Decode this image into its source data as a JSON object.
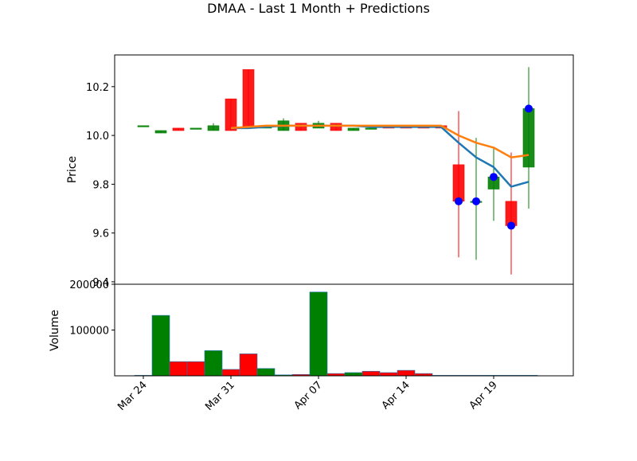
{
  "title": "DMAA - Last 1 Month + Predictions",
  "colors": {
    "up": "#008000",
    "down": "#ff0000",
    "pred_blue": "#1f77b4",
    "pred_orange": "#ff7f0e",
    "marker": "#0000ff"
  },
  "chart_data": [
    {
      "type": "candlestick",
      "ylabel": "Price",
      "ylim": [
        9.39,
        10.33
      ],
      "yticks": [
        "9.4",
        "9.6",
        "9.8",
        "10.0",
        "10.2"
      ],
      "ytick_values": [
        9.4,
        9.6,
        9.8,
        10.0,
        10.2
      ],
      "xtick_labels": [
        "Mar 24",
        "Mar 31",
        "Apr 07",
        "Apr 14",
        "Apr 19"
      ],
      "xtick_index": [
        0,
        5,
        10,
        15,
        20
      ],
      "candles": [
        {
          "o": 10.04,
          "c": 10.04,
          "h": 10.04,
          "l": 10.04
        },
        {
          "o": 10.01,
          "c": 10.02,
          "h": 10.02,
          "l": 10.01
        },
        {
          "o": 10.03,
          "c": 10.02,
          "h": 10.03,
          "l": 10.02
        },
        {
          "o": 10.03,
          "c": 10.03,
          "h": 10.03,
          "l": 10.03
        },
        {
          "o": 10.02,
          "c": 10.04,
          "h": 10.05,
          "l": 10.02
        },
        {
          "o": 10.15,
          "c": 10.02,
          "h": 10.15,
          "l": 10.02
        },
        {
          "o": 10.27,
          "c": 10.03,
          "h": 10.27,
          "l": 10.03
        },
        {
          "o": 10.03,
          "c": 10.04,
          "h": 10.04,
          "l": 10.03
        },
        {
          "o": 10.02,
          "c": 10.06,
          "h": 10.07,
          "l": 10.02
        },
        {
          "o": 10.05,
          "c": 10.02,
          "h": 10.05,
          "l": 10.02
        },
        {
          "o": 10.03,
          "c": 10.05,
          "h": 10.06,
          "l": 10.03
        },
        {
          "o": 10.05,
          "c": 10.02,
          "h": 10.05,
          "l": 10.02
        },
        {
          "o": 10.02,
          "c": 10.03,
          "h": 10.03,
          "l": 10.02
        },
        {
          "o": 10.03,
          "c": 10.03,
          "h": 10.03,
          "l": 10.03
        },
        {
          "o": 10.04,
          "c": 10.03,
          "h": 10.04,
          "l": 10.03
        },
        {
          "o": 10.04,
          "c": 10.03,
          "h": 10.04,
          "l": 10.03
        },
        {
          "o": 10.04,
          "c": 10.03,
          "h": 10.04,
          "l": 10.03
        },
        {
          "o": 10.04,
          "c": 10.03,
          "h": 10.04,
          "l": 10.03
        },
        {
          "o": 9.88,
          "c": 9.73,
          "h": 10.1,
          "l": 9.5
        },
        {
          "o": 9.73,
          "c": 9.73,
          "h": 9.99,
          "l": 9.49
        },
        {
          "o": 9.78,
          "c": 9.83,
          "h": 9.95,
          "l": 9.65
        },
        {
          "o": 9.73,
          "c": 9.63,
          "h": 9.93,
          "l": 9.43
        },
        {
          "o": 9.87,
          "c": 10.11,
          "h": 10.28,
          "l": 9.7
        }
      ],
      "series": [
        {
          "values": [
            null,
            null,
            null,
            null,
            null,
            10.03,
            10.03,
            10.035,
            10.04,
            10.04,
            10.04,
            10.04,
            10.04,
            10.035,
            10.035,
            10.035,
            10.035,
            10.035,
            9.97,
            9.91,
            9.87,
            9.79,
            9.81
          ]
        },
        {
          "values": [
            null,
            null,
            null,
            null,
            null,
            10.03,
            10.035,
            10.04,
            10.04,
            10.04,
            10.04,
            10.04,
            10.04,
            10.04,
            10.04,
            10.04,
            10.04,
            10.04,
            10.0,
            9.97,
            9.95,
            9.91,
            9.92
          ]
        }
      ],
      "markers": [
        {
          "x": 18,
          "y": 9.73
        },
        {
          "x": 19,
          "y": 9.73
        },
        {
          "x": 20,
          "y": 9.83
        },
        {
          "x": 21,
          "y": 9.63
        },
        {
          "x": 22,
          "y": 10.11
        }
      ]
    },
    {
      "type": "bar",
      "ylabel": "Volume",
      "ylim": [
        0,
        200000
      ],
      "yticks": [
        "100000",
        "200000"
      ],
      "ytick_values": [
        100000,
        200000
      ],
      "values": [
        1000,
        132000,
        31000,
        31000,
        55000,
        14000,
        48000,
        16000,
        2000,
        3000,
        183000,
        5000,
        7000,
        10000,
        7000,
        12000,
        5000,
        1000,
        1000,
        1000,
        1000,
        1000,
        1000
      ],
      "directions": [
        "down",
        "up",
        "down",
        "down",
        "up",
        "down",
        "down",
        "up",
        "up",
        "down",
        "up",
        "down",
        "up",
        "down",
        "down",
        "down",
        "down",
        "down",
        "down",
        "down",
        "up",
        "down",
        "up"
      ]
    }
  ]
}
